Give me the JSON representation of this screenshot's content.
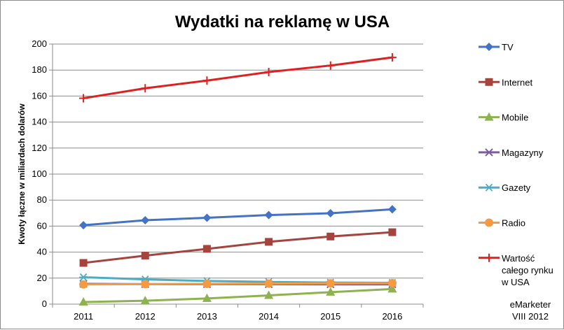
{
  "chart_data": {
    "type": "line",
    "title": "Wydatki na reklamę w USA",
    "ylabel": "Kwoty łączne w miliardach dolarów",
    "xlabel": "",
    "categories": [
      "2011",
      "2012",
      "2013",
      "2014",
      "2015",
      "2016"
    ],
    "ylim": [
      0,
      200
    ],
    "yticks": [
      0,
      20,
      40,
      60,
      80,
      100,
      120,
      140,
      160,
      180,
      200
    ],
    "grid": "horizontal",
    "legend_position": "right",
    "series": [
      {
        "name": "TV",
        "color": "#4472c4",
        "marker": "diamond",
        "values": [
          60.7,
          64.5,
          66.4,
          68.5,
          69.9,
          72.9
        ]
      },
      {
        "name": "Internet",
        "color": "#a5443f",
        "marker": "square",
        "values": [
          31.7,
          37.3,
          42.5,
          47.9,
          52.0,
          55.3
        ]
      },
      {
        "name": "Mobile",
        "color": "#8eb24f",
        "marker": "triangle",
        "values": [
          1.6,
          2.6,
          4.4,
          6.7,
          9.2,
          11.6
        ]
      },
      {
        "name": "Magazyny",
        "color": "#7a5ea1",
        "marker": "x",
        "values": [
          15.6,
          15.4,
          15.3,
          15.3,
          15.2,
          15.2
        ]
      },
      {
        "name": "Gazety",
        "color": "#4bacc6",
        "marker": "asterisk",
        "values": [
          20.7,
          19.0,
          17.8,
          17.1,
          16.6,
          16.4
        ]
      },
      {
        "name": "Radio",
        "color": "#f59a40",
        "marker": "circle",
        "values": [
          15.2,
          15.4,
          15.6,
          15.8,
          16.0,
          16.1
        ]
      },
      {
        "name_lines": [
          "Wartość",
          "całego rynku",
          "w USA"
        ],
        "color": "#e02020",
        "marker": "plus",
        "values": [
          158.3,
          166.0,
          171.9,
          178.5,
          183.5,
          189.7
        ]
      }
    ]
  },
  "source_note": [
    "eMarketer",
    "VIII 2012"
  ]
}
